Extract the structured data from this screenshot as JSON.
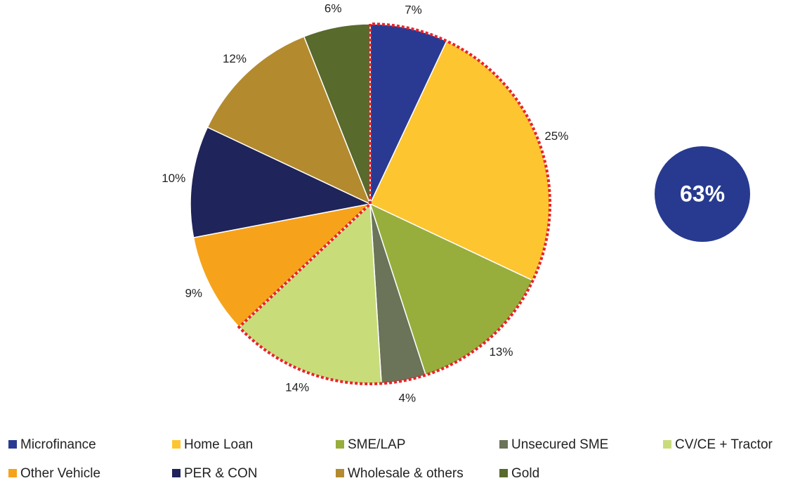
{
  "chart_data": {
    "type": "pie",
    "categories": [
      "Microfinance",
      "Home Loan",
      "SME/LAP",
      "Unsecured SME",
      "CV/CE + Tractor",
      "Other Vehicle",
      "PER & CON",
      "Wholesale & others",
      "Gold"
    ],
    "values": [
      7,
      25,
      13,
      4,
      14,
      9,
      10,
      12,
      6
    ],
    "value_labels": [
      "7%",
      "25%",
      "13%",
      "4%",
      "14%",
      "9%",
      "10%",
      "12%",
      "6%"
    ],
    "colors": [
      "#2a3a92",
      "#fdc530",
      "#97ae3c",
      "#6b7358",
      "#c9dc7a",
      "#f6a31b",
      "#1f245a",
      "#b38a2e",
      "#586a2c"
    ],
    "highlight": {
      "categories": [
        0,
        1,
        2,
        3,
        4
      ],
      "label": "63%",
      "color": "#283a8f",
      "outline": "#e8232a"
    },
    "legend": "bottom"
  }
}
